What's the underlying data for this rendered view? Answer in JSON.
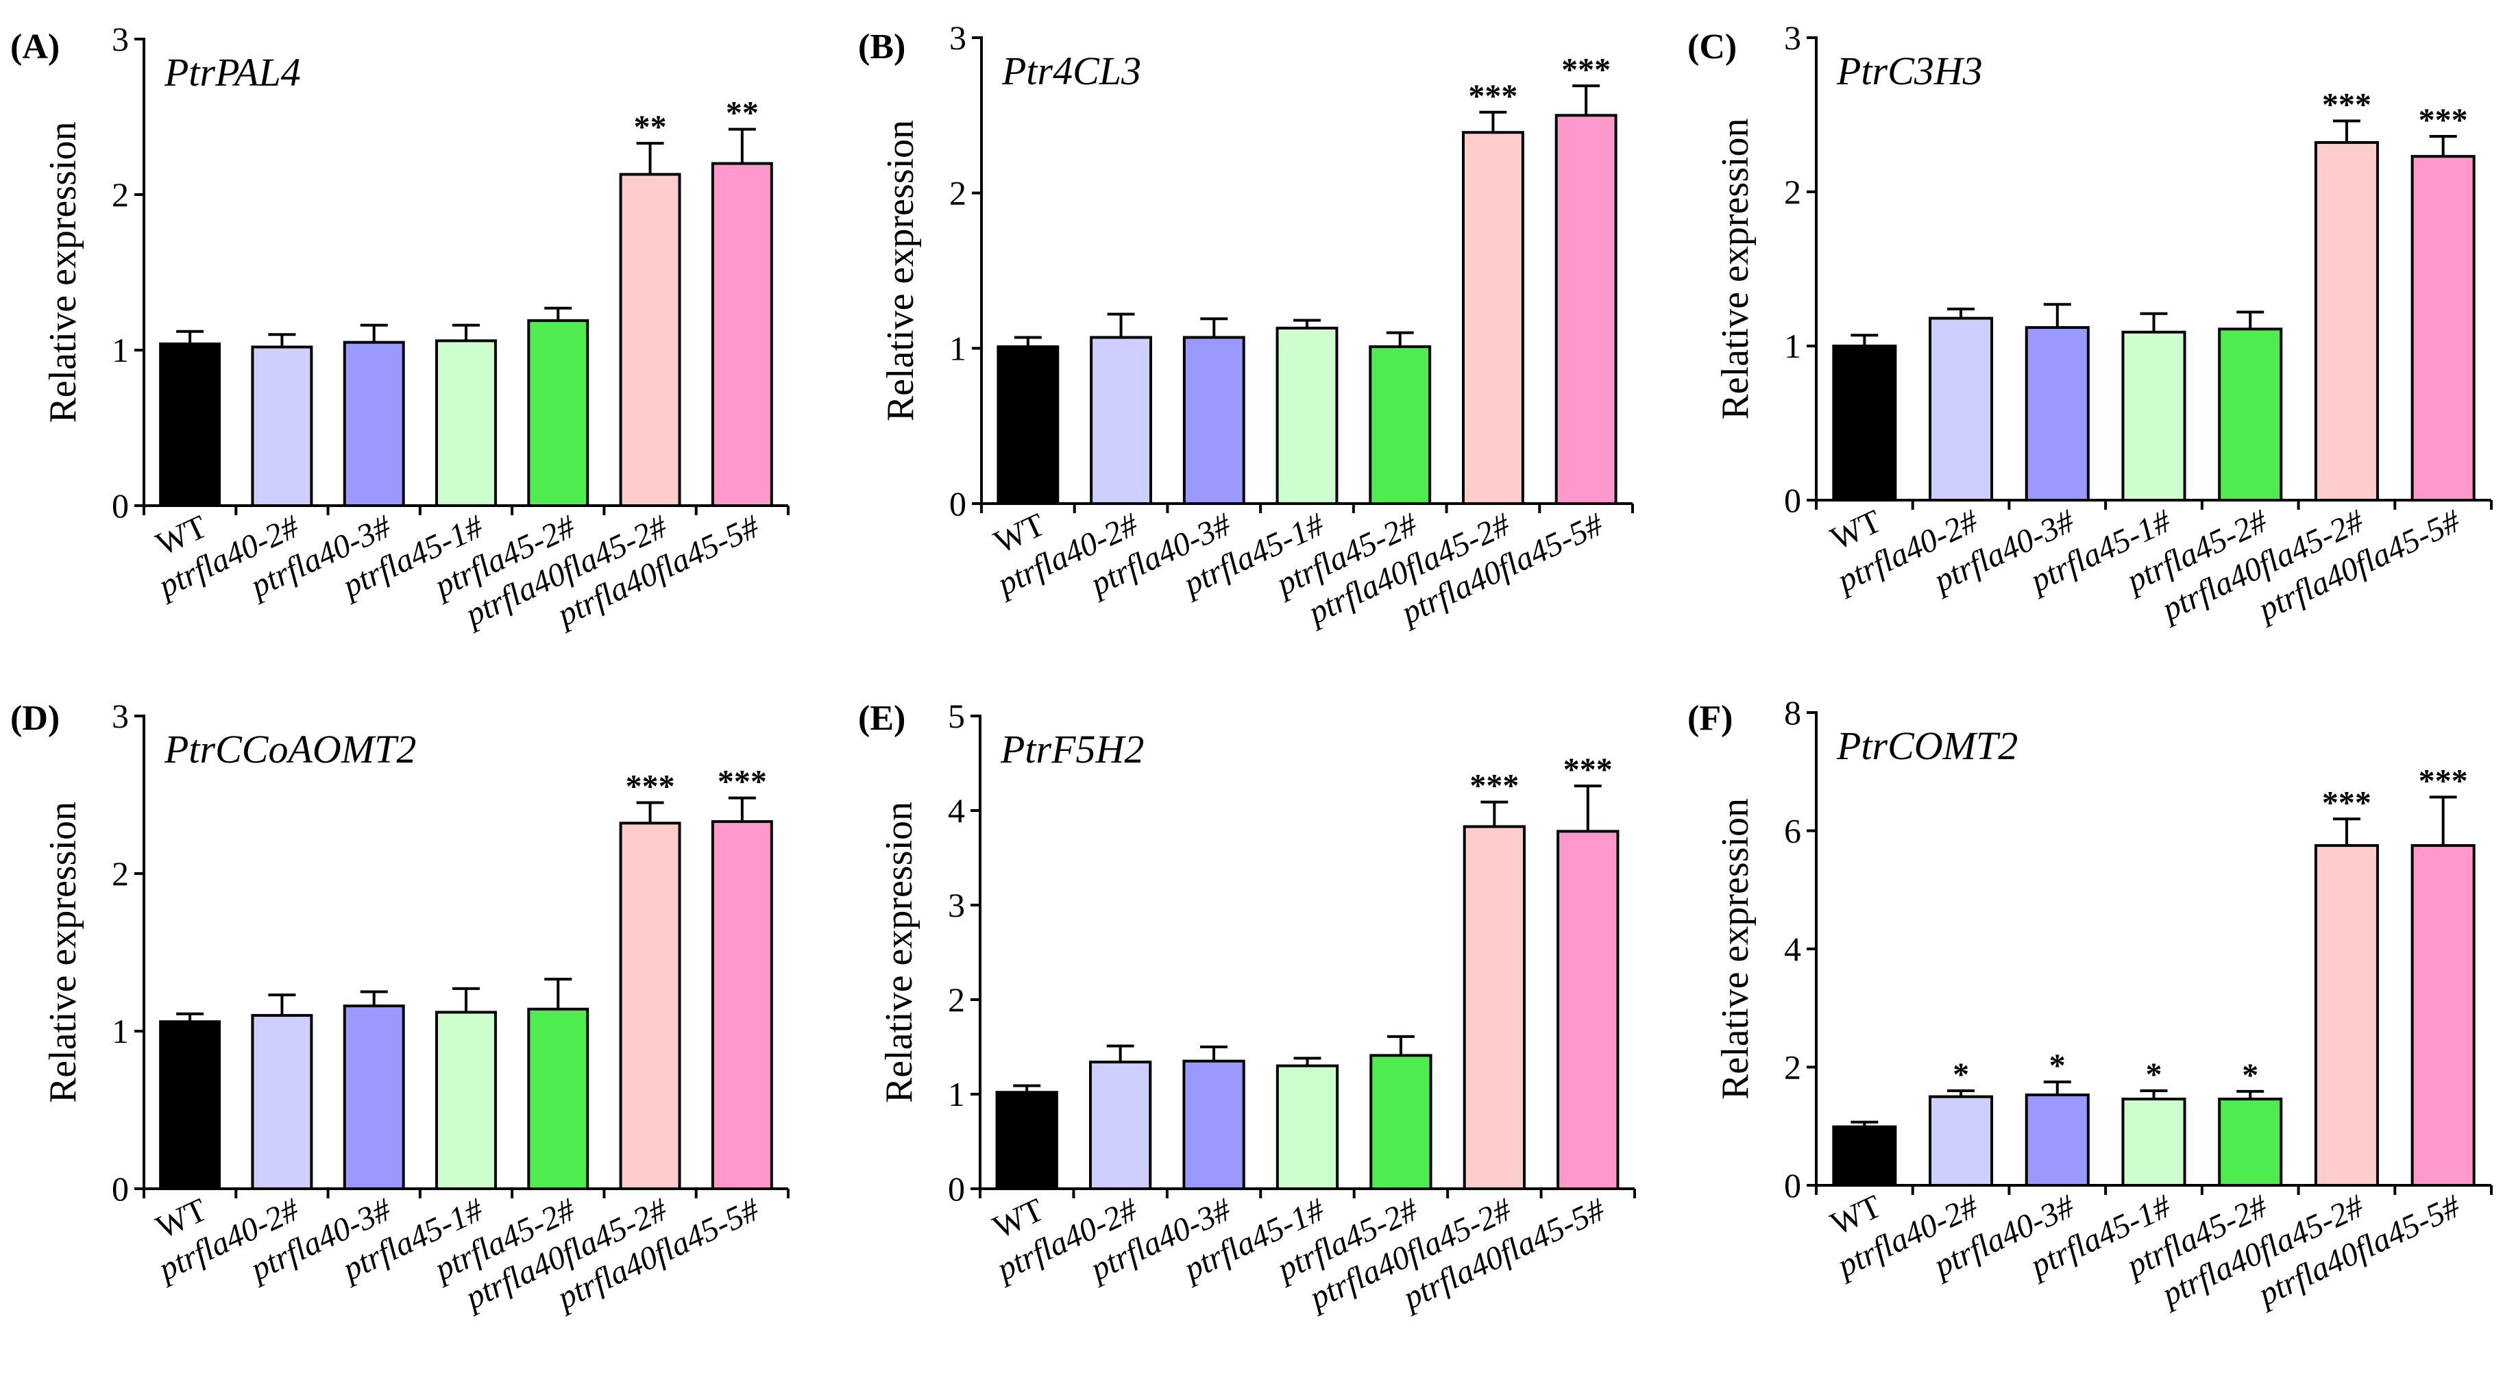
{
  "colors": {
    "WT": "#000000",
    "ptrfla40-2#": "#cfcfff",
    "ptrfla40-3#": "#9999ff",
    "ptrfla45-1#": "#ccffcc",
    "ptrfla45-2#": "#4fec4f",
    "ptrfla40fla45-2#": "#ffcccc",
    "ptrfla40fla45-5#": "#ff99cc"
  },
  "chart_data": [
    {
      "type": "bar",
      "panel": "(A)",
      "title": "PtrPAL4",
      "ylabel": "Relative expression",
      "ylim": [
        0,
        3
      ],
      "yticks": [
        0,
        1,
        2,
        3
      ],
      "categories": [
        "WT",
        "ptrfla40-2#",
        "ptrfla40-3#",
        "ptrfla45-1#",
        "ptrfla45-2#",
        "ptrfla40fla45-2#",
        "ptrfla40fla45-5#"
      ],
      "values": [
        1.04,
        1.02,
        1.05,
        1.06,
        1.19,
        2.13,
        2.2
      ],
      "errors": [
        0.08,
        0.08,
        0.11,
        0.1,
        0.08,
        0.2,
        0.22
      ],
      "significance": [
        "",
        "",
        "",
        "",
        "",
        "**",
        "**"
      ]
    },
    {
      "type": "bar",
      "panel": "(B)",
      "title": "Ptr4CL3",
      "ylabel": "Relative expression",
      "ylim": [
        0,
        3
      ],
      "yticks": [
        0,
        1,
        2,
        3
      ],
      "categories": [
        "WT",
        "ptrfla40-2#",
        "ptrfla40-3#",
        "ptrfla45-1#",
        "ptrfla45-2#",
        "ptrfla40fla45-2#",
        "ptrfla40fla45-5#"
      ],
      "values": [
        1.01,
        1.07,
        1.07,
        1.13,
        1.01,
        2.39,
        2.5
      ],
      "errors": [
        0.06,
        0.15,
        0.12,
        0.05,
        0.09,
        0.13,
        0.19
      ],
      "significance": [
        "",
        "",
        "",
        "",
        "",
        "***",
        "***"
      ]
    },
    {
      "type": "bar",
      "panel": "(C)",
      "title": "PtrC3H3",
      "ylabel": "Relative expression",
      "ylim": [
        0,
        3
      ],
      "yticks": [
        0,
        1,
        2,
        3
      ],
      "categories": [
        "WT",
        "ptrfla40-2#",
        "ptrfla40-3#",
        "ptrfla45-1#",
        "ptrfla45-2#",
        "ptrfla40fla45-2#",
        "ptrfla40fla45-5#"
      ],
      "values": [
        1.0,
        1.18,
        1.12,
        1.09,
        1.11,
        2.32,
        2.23
      ],
      "errors": [
        0.07,
        0.06,
        0.15,
        0.12,
        0.11,
        0.14,
        0.13
      ],
      "significance": [
        "",
        "",
        "",
        "",
        "",
        "***",
        "***"
      ]
    },
    {
      "type": "bar",
      "panel": "(D)",
      "title": "PtrCCoAOMT2",
      "ylabel": "Relative expression",
      "ylim": [
        0,
        3
      ],
      "yticks": [
        0,
        1,
        2,
        3
      ],
      "categories": [
        "WT",
        "ptrfla40-2#",
        "ptrfla40-3#",
        "ptrfla45-1#",
        "ptrfla45-2#",
        "ptrfla40fla45-2#",
        "ptrfla40fla45-5#"
      ],
      "values": [
        1.06,
        1.1,
        1.16,
        1.12,
        1.14,
        2.32,
        2.33
      ],
      "errors": [
        0.05,
        0.13,
        0.09,
        0.15,
        0.19,
        0.13,
        0.15
      ],
      "significance": [
        "",
        "",
        "",
        "",
        "",
        "***",
        "***"
      ]
    },
    {
      "type": "bar",
      "panel": "(E)",
      "title": "PtrF5H2",
      "ylabel": "Relative expression",
      "ylim": [
        0,
        5
      ],
      "yticks": [
        0,
        1,
        2,
        3,
        4,
        5
      ],
      "categories": [
        "WT",
        "ptrfla40-2#",
        "ptrfla40-3#",
        "ptrfla45-1#",
        "ptrfla45-2#",
        "ptrfla40fla45-2#",
        "ptrfla40fla45-5#"
      ],
      "values": [
        1.02,
        1.34,
        1.35,
        1.3,
        1.41,
        3.83,
        3.78
      ],
      "errors": [
        0.07,
        0.17,
        0.15,
        0.08,
        0.2,
        0.26,
        0.48
      ],
      "significance": [
        "",
        "",
        "",
        "",
        "",
        "***",
        "***"
      ]
    },
    {
      "type": "bar",
      "panel": "(F)",
      "title": "PtrCOMT2",
      "ylabel": "Relative expression",
      "ylim": [
        0,
        8
      ],
      "yticks": [
        0,
        2,
        4,
        6,
        8
      ],
      "categories": [
        "WT",
        "ptrfla40-2#",
        "ptrfla40-3#",
        "ptrfla45-1#",
        "ptrfla45-2#",
        "ptrfla40fla45-2#",
        "ptrfla40fla45-5#"
      ],
      "values": [
        0.99,
        1.5,
        1.53,
        1.46,
        1.46,
        5.75,
        5.75
      ],
      "errors": [
        0.08,
        0.1,
        0.22,
        0.14,
        0.13,
        0.45,
        0.82
      ],
      "significance": [
        "",
        "*",
        "*",
        "*",
        "*",
        "***",
        "***"
      ]
    }
  ]
}
